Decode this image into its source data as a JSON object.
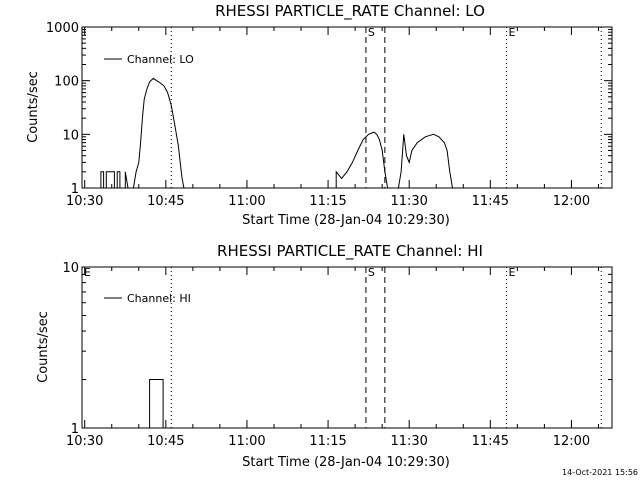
{
  "footer": {
    "timestamp": "14-Oct-2021 15:56"
  },
  "chart_data": [
    {
      "type": "line",
      "scale": "log",
      "title": "RHESSI PARTICLE_RATE Channel: LO",
      "xlabel": "Start Time (28-Jan-04 10:29:30)",
      "ylabel": "Counts/sec",
      "xlim": [
        "10:29:30",
        "12:07:30"
      ],
      "ylim": [
        1,
        1000
      ],
      "x_ticks": [
        "10:30",
        "10:45",
        "11:00",
        "11:15",
        "11:30",
        "11:45",
        "12:00"
      ],
      "y_ticks": [
        "1",
        "10",
        "100",
        "1000"
      ],
      "legend": {
        "position": "top-left",
        "label": "Channel: LO"
      },
      "markers": [
        {
          "time": "10:46:00",
          "style": "dotted",
          "label": ""
        },
        {
          "time": "11:22:00",
          "style": "dashed",
          "label": "S"
        },
        {
          "time": "11:25:30",
          "style": "dashed",
          "label": ""
        },
        {
          "time": "11:48:00",
          "style": "dotted",
          "label": "E"
        },
        {
          "time": "12:05:30",
          "style": "dotted",
          "label": ""
        }
      ],
      "series": [
        {
          "values": [
            [
              "10:30:00",
              1
            ],
            [
              "10:33:00",
              1
            ],
            [
              "10:33:00",
              2
            ],
            [
              "10:33:30",
              2
            ],
            [
              "10:33:30",
              1
            ],
            [
              "10:34:00",
              1
            ],
            [
              "10:34:00",
              2
            ],
            [
              "10:35:30",
              2
            ],
            [
              "10:35:30",
              1
            ],
            [
              "10:36:00",
              1
            ],
            [
              "10:36:00",
              2
            ],
            [
              "10:36:30",
              2
            ],
            [
              "10:36:30",
              1
            ],
            [
              "10:37:30",
              1
            ],
            [
              "10:37:30",
              2
            ],
            [
              "10:38:00",
              1
            ],
            [
              "10:39:00",
              1
            ],
            [
              "10:39:30",
              2
            ],
            [
              "10:40:00",
              3
            ],
            [
              "10:40:20",
              7
            ],
            [
              "10:40:40",
              20
            ],
            [
              "10:41:00",
              45
            ],
            [
              "10:41:30",
              70
            ],
            [
              "10:42:00",
              95
            ],
            [
              "10:42:40",
              110
            ],
            [
              "10:43:20",
              100
            ],
            [
              "10:44:00",
              90
            ],
            [
              "10:44:40",
              80
            ],
            [
              "10:45:20",
              60
            ],
            [
              "10:46:00",
              35
            ],
            [
              "10:46:40",
              15
            ],
            [
              "10:47:20",
              6
            ],
            [
              "10:47:40",
              3
            ],
            [
              "10:48:00",
              1.5
            ],
            [
              "10:48:20",
              1
            ],
            [
              "11:16:30",
              1
            ],
            [
              "11:16:30",
              2
            ],
            [
              "11:17:30",
              1.5
            ],
            [
              "11:18:30",
              2
            ],
            [
              "11:19:30",
              3
            ],
            [
              "11:20:30",
              5
            ],
            [
              "11:21:30",
              8
            ],
            [
              "11:22:30",
              10
            ],
            [
              "11:23:30",
              11
            ],
            [
              "11:24:00",
              10
            ],
            [
              "11:24:30",
              8
            ],
            [
              "11:25:00",
              5
            ],
            [
              "11:25:30",
              2
            ],
            [
              "11:26:00",
              1
            ],
            [
              "11:28:00",
              1
            ],
            [
              "11:28:30",
              2
            ],
            [
              "11:29:00",
              10
            ],
            [
              "11:29:30",
              4
            ],
            [
              "11:30:00",
              3
            ],
            [
              "11:30:30",
              5
            ],
            [
              "11:31:30",
              7
            ],
            [
              "11:33:00",
              9
            ],
            [
              "11:34:30",
              10
            ],
            [
              "11:35:30",
              9
            ],
            [
              "11:36:30",
              7
            ],
            [
              "11:37:00",
              5
            ],
            [
              "11:37:30",
              2
            ],
            [
              "11:38:00",
              1
            ]
          ]
        }
      ]
    },
    {
      "type": "line",
      "scale": "log",
      "title": "RHESSI PARTICLE_RATE Channel: HI",
      "xlabel": "Start Time (28-Jan-04 10:29:30)",
      "ylabel": "Counts/sec",
      "xlim": [
        "10:29:30",
        "12:07:30"
      ],
      "ylim": [
        1,
        10
      ],
      "x_ticks": [
        "10:30",
        "10:45",
        "11:00",
        "11:15",
        "11:30",
        "11:45",
        "12:00"
      ],
      "y_ticks": [
        "1",
        "10"
      ],
      "legend": {
        "position": "top-left",
        "label": "Channel: HI"
      },
      "markers": [
        {
          "time": "10:29:30",
          "style": "none",
          "label": "E"
        },
        {
          "time": "10:46:00",
          "style": "dotted",
          "label": ""
        },
        {
          "time": "11:22:00",
          "style": "dashed",
          "label": "S"
        },
        {
          "time": "11:25:30",
          "style": "dashed",
          "label": ""
        },
        {
          "time": "11:48:00",
          "style": "dotted",
          "label": "E"
        },
        {
          "time": "12:05:30",
          "style": "dotted",
          "label": ""
        }
      ],
      "series": [
        {
          "values": [
            [
              "10:42:00",
              1
            ],
            [
              "10:42:00",
              2
            ],
            [
              "10:44:30",
              2
            ],
            [
              "10:44:30",
              1
            ]
          ]
        }
      ]
    }
  ]
}
